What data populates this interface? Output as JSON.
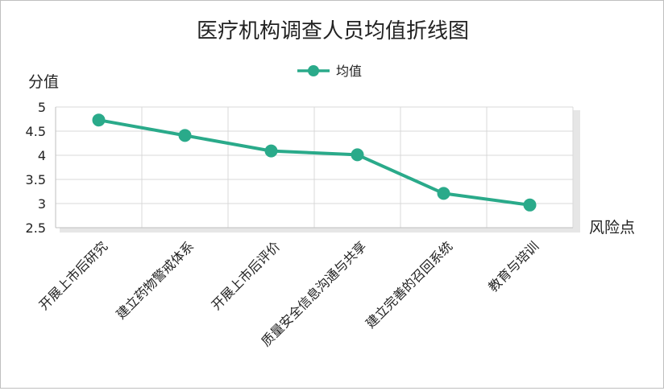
{
  "chart_data": {
    "type": "line",
    "title": "医疗机构调查人员均值折线图",
    "xlabel": "风险点",
    "ylabel": "分值",
    "categories": [
      "开展上市后研究",
      "建立药物警戒体系",
      "开展上市后评价",
      "质量安全信息沟通与共享",
      "建立完善的召回系统",
      "教育与培训"
    ],
    "series": [
      {
        "name": "均值",
        "values": [
          4.73,
          4.41,
          4.09,
          4.01,
          3.21,
          2.97
        ],
        "color": "#2aaa8a"
      }
    ],
    "ylim": [
      2.5,
      5
    ],
    "yticks": [
      "2.5",
      "3",
      "3.5",
      "4",
      "4.5",
      "5"
    ],
    "grid": true,
    "legend": "top"
  }
}
